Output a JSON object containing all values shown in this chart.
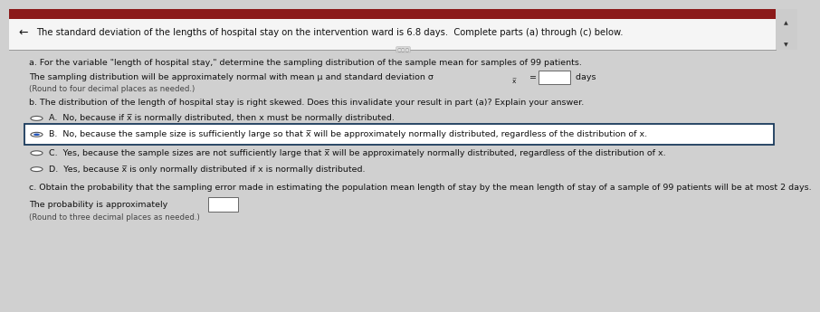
{
  "bg_color": "#d0d0d0",
  "content_bg": "#e8e8e8",
  "header_bg": "#f5f5f5",
  "header_text": "The standard deviation of the lengths of hospital stay on the intervention ward is 6.8 days.  Complete parts (a) through (c) below.",
  "separator_color": "#999999",
  "part_a_label": "a. For the variable \"length of hospital stay,\" determine the sampling distribution of the sample mean for samples of 99 patients.",
  "part_a_line1": "The sampling distribution will be approximately normal with mean μ and standard deviation σ",
  "part_a_subscript": "x̅",
  "part_a_equals": " =",
  "part_a_days": " days",
  "part_a_note": "(Round to four decimal places as needed.)",
  "part_b_label": "b. The distribution of the length of hospital stay is right skewed. Does this invalidate your result in part (a)? Explain your answer.",
  "option_A": "A.  No, because if x̅ is normally distributed, then x must be normally distributed.",
  "option_B": "B.  No, because the sample size is sufficiently large so that x̅ will be approximately normally distributed, regardless of the distribution of x.",
  "option_C": "C.  Yes, because the sample sizes are not sufficiently large that x̅ will be approximately normally distributed, regardless of the distribution of x.",
  "option_D": "D.  Yes, because x̅ is only normally distributed if x is normally distributed.",
  "option_B_selected": true,
  "option_B_box_color": "#1a3a5c",
  "part_c_label": "c. Obtain the probability that the sampling error made in estimating the population mean length of stay by the mean length of stay of a sample of 99 patients will be at most 2 days.",
  "part_c_line1": "The probability is approximately",
  "part_c_note": "(Round to three decimal places as needed.)",
  "radio_border": "#555555",
  "radio_fill": "#2255bb",
  "text_color": "#111111",
  "dim_color": "#444444",
  "font_body": 6.8,
  "font_small": 6.2,
  "font_header": 7.2
}
